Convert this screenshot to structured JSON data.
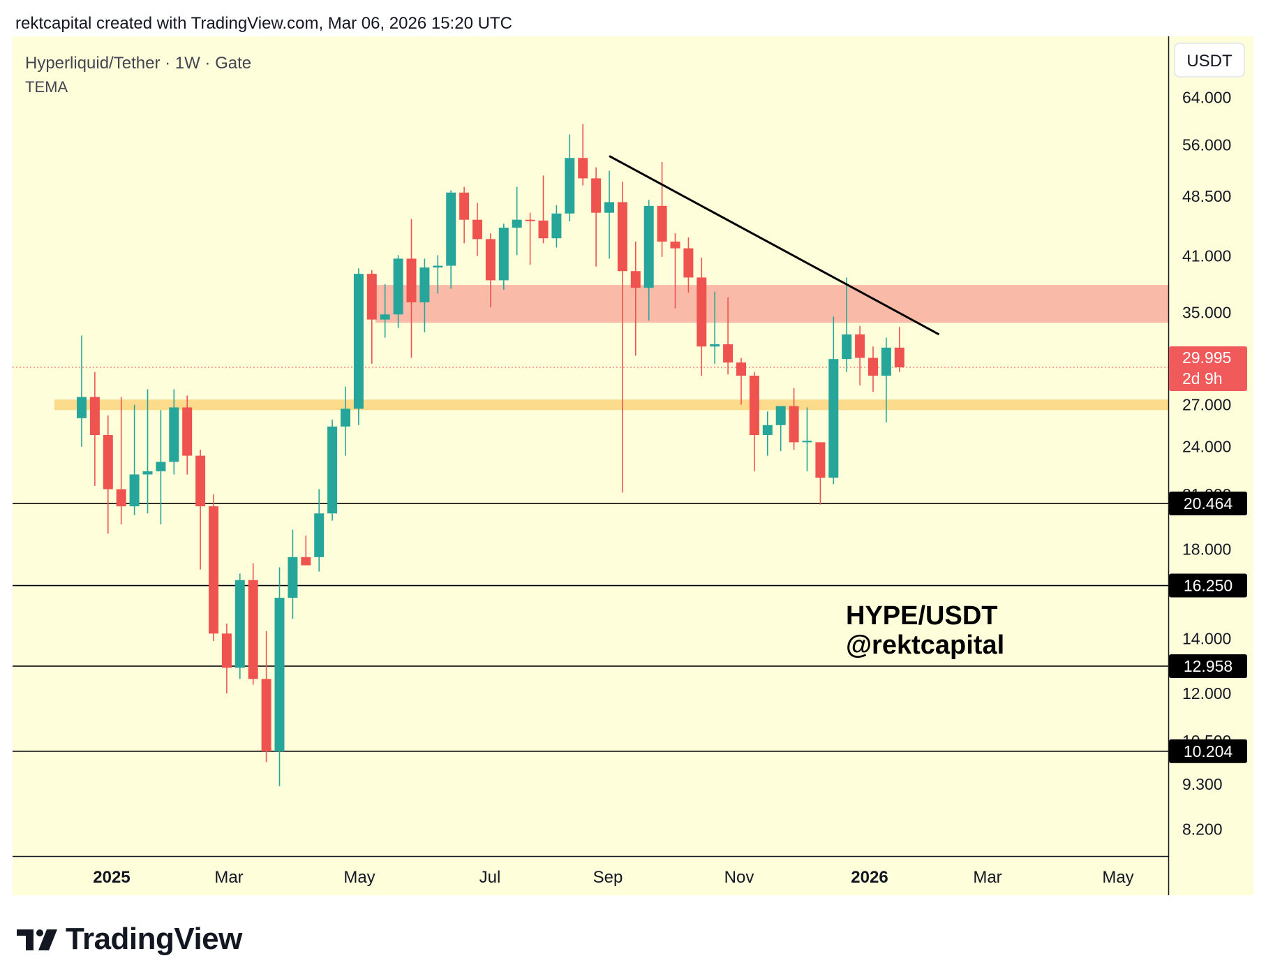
{
  "header": {
    "attribution": "rektcapital created with TradingView.com, Mar 06, 2026 15:20 UTC"
  },
  "symbol_title": "Hyperliquid/Tether · 1W · Gate",
  "indicator": "TEMA",
  "currency_button": "USDT",
  "annotation": {
    "line1": "HYPE/USDT",
    "line2": "@rektcapital"
  },
  "last_price": {
    "value": "29.995",
    "countdown": "2d 9h"
  },
  "brand": {
    "name": "TradingView"
  },
  "colors": {
    "background": "#fffedb",
    "up": "#26a69a",
    "down": "#ef5350",
    "resistance_zone": "#f9bba8",
    "support_band": "#fcdc8c",
    "level_line": "#000000",
    "trendline": "#000000",
    "price_label_bg": "#000000",
    "last_price_bg": "#f05a5a"
  },
  "chart_data": {
    "type": "candlestick",
    "title": "Hyperliquid/Tether · 1W · Gate",
    "y_scale": "log",
    "ylim": [
      7.6,
      76
    ],
    "x_tick_labels": [
      "2025",
      "Mar",
      "May",
      "Jul",
      "Sep",
      "Nov",
      "2026",
      "Mar",
      "May"
    ],
    "y_tick_labels": [
      "64.000",
      "56.000",
      "48.500",
      "41.000",
      "35.000",
      "31.000",
      "27.000",
      "24.000",
      "21.000",
      "18.000",
      "14.000",
      "12.000",
      "10.500",
      "9.300",
      "8.200"
    ],
    "y_ticks": [
      64,
      56,
      48.5,
      41,
      35,
      31,
      27,
      24,
      21,
      18,
      14,
      12,
      10.5,
      9.3,
      8.2
    ],
    "horizontal_levels": [
      {
        "value": 20.464,
        "label": "20.464"
      },
      {
        "value": 16.25,
        "label": "16.250"
      },
      {
        "value": 12.958,
        "label": "12.958"
      },
      {
        "value": 10.204,
        "label": "10.204"
      }
    ],
    "resistance_zone": {
      "low": 34.0,
      "high": 37.8
    },
    "support_band": {
      "low": 26.6,
      "high": 27.4
    },
    "trendline": [
      {
        "index": 40,
        "price": 54.3
      },
      {
        "index": 65,
        "price": 32.9
      }
    ],
    "last_price": 29.995,
    "candles": [
      {
        "date": "2024-12-16",
        "open": 26.0,
        "high": 32.8,
        "low": 24.0,
        "close": 27.6
      },
      {
        "date": "2024-12-23",
        "open": 27.6,
        "high": 29.6,
        "low": 21.5,
        "close": 24.8
      },
      {
        "date": "2024-12-30",
        "open": 24.8,
        "high": 26.2,
        "low": 18.8,
        "close": 21.3
      },
      {
        "date": "2025-01-06",
        "open": 21.3,
        "high": 27.6,
        "low": 19.3,
        "close": 20.3
      },
      {
        "date": "2025-01-13",
        "open": 20.3,
        "high": 27.0,
        "low": 19.8,
        "close": 22.2
      },
      {
        "date": "2025-01-20",
        "open": 22.2,
        "high": 28.2,
        "low": 19.9,
        "close": 22.4
      },
      {
        "date": "2025-01-27",
        "open": 22.4,
        "high": 26.6,
        "low": 19.3,
        "close": 23.0
      },
      {
        "date": "2025-02-03",
        "open": 23.0,
        "high": 28.2,
        "low": 22.2,
        "close": 26.8
      },
      {
        "date": "2025-02-10",
        "open": 26.8,
        "high": 27.7,
        "low": 22.2,
        "close": 23.4
      },
      {
        "date": "2025-02-17",
        "open": 23.4,
        "high": 23.8,
        "low": 17.0,
        "close": 20.3
      },
      {
        "date": "2025-02-24",
        "open": 20.3,
        "high": 21.0,
        "low": 13.9,
        "close": 14.2
      },
      {
        "date": "2025-03-03",
        "open": 14.2,
        "high": 14.6,
        "low": 12.0,
        "close": 12.9
      },
      {
        "date": "2025-03-10",
        "open": 12.9,
        "high": 16.8,
        "low": 12.5,
        "close": 16.5
      },
      {
        "date": "2025-03-17",
        "open": 16.5,
        "high": 17.3,
        "low": 12.3,
        "close": 12.5
      },
      {
        "date": "2025-03-24",
        "open": 12.5,
        "high": 14.3,
        "low": 9.9,
        "close": 10.2
      },
      {
        "date": "2025-03-31",
        "open": 10.2,
        "high": 17.1,
        "low": 9.25,
        "close": 15.7
      },
      {
        "date": "2025-04-07",
        "open": 15.7,
        "high": 19.0,
        "low": 14.8,
        "close": 17.6
      },
      {
        "date": "2025-04-14",
        "open": 17.6,
        "high": 18.7,
        "low": 17.2,
        "close": 17.2
      },
      {
        "date": "2025-04-21",
        "open": 17.6,
        "high": 21.3,
        "low": 16.9,
        "close": 19.9
      },
      {
        "date": "2025-04-28",
        "open": 19.9,
        "high": 25.9,
        "low": 19.5,
        "close": 25.4
      },
      {
        "date": "2025-05-05",
        "open": 25.4,
        "high": 28.4,
        "low": 23.4,
        "close": 26.7
      },
      {
        "date": "2025-05-12",
        "open": 26.7,
        "high": 39.6,
        "low": 25.5,
        "close": 39.0
      },
      {
        "date": "2025-05-19",
        "open": 39.0,
        "high": 39.4,
        "low": 30.3,
        "close": 34.3
      },
      {
        "date": "2025-05-26",
        "open": 34.3,
        "high": 37.9,
        "low": 32.6,
        "close": 34.8
      },
      {
        "date": "2025-06-02",
        "open": 34.8,
        "high": 41.1,
        "low": 33.5,
        "close": 40.7
      },
      {
        "date": "2025-06-09",
        "open": 40.7,
        "high": 45.5,
        "low": 30.8,
        "close": 36.0
      },
      {
        "date": "2025-06-16",
        "open": 36.0,
        "high": 40.7,
        "low": 33.1,
        "close": 39.7
      },
      {
        "date": "2025-06-23",
        "open": 39.7,
        "high": 41.1,
        "low": 36.9,
        "close": 39.9
      },
      {
        "date": "2025-06-30",
        "open": 39.9,
        "high": 49.3,
        "low": 37.4,
        "close": 49.0
      },
      {
        "date": "2025-07-07",
        "open": 49.0,
        "high": 49.8,
        "low": 42.5,
        "close": 45.4
      },
      {
        "date": "2025-07-14",
        "open": 45.4,
        "high": 47.6,
        "low": 41.0,
        "close": 43.0
      },
      {
        "date": "2025-07-21",
        "open": 43.0,
        "high": 43.7,
        "low": 35.5,
        "close": 38.3
      },
      {
        "date": "2025-07-28",
        "open": 38.3,
        "high": 44.9,
        "low": 37.3,
        "close": 44.4
      },
      {
        "date": "2025-08-04",
        "open": 44.4,
        "high": 49.8,
        "low": 41.1,
        "close": 45.4
      },
      {
        "date": "2025-08-11",
        "open": 45.4,
        "high": 46.3,
        "low": 40.0,
        "close": 45.3
      },
      {
        "date": "2025-08-18",
        "open": 45.3,
        "high": 51.4,
        "low": 42.5,
        "close": 43.1
      },
      {
        "date": "2025-08-25",
        "open": 43.1,
        "high": 47.3,
        "low": 42.0,
        "close": 46.2
      },
      {
        "date": "2025-09-01",
        "open": 46.2,
        "high": 57.7,
        "low": 45.2,
        "close": 54.0
      },
      {
        "date": "2025-09-08",
        "open": 54.0,
        "high": 59.4,
        "low": 50.0,
        "close": 51.0
      },
      {
        "date": "2025-09-15",
        "open": 51.0,
        "high": 52.6,
        "low": 39.8,
        "close": 46.3
      },
      {
        "date": "2025-09-22",
        "open": 46.3,
        "high": 52.1,
        "low": 40.7,
        "close": 47.7
      },
      {
        "date": "2025-09-29",
        "open": 47.7,
        "high": 50.5,
        "low": 21.1,
        "close": 39.3
      },
      {
        "date": "2025-10-06",
        "open": 39.3,
        "high": 42.7,
        "low": 31.0,
        "close": 37.5
      },
      {
        "date": "2025-10-13",
        "open": 37.5,
        "high": 48.0,
        "low": 34.2,
        "close": 47.2
      },
      {
        "date": "2025-10-20",
        "open": 47.2,
        "high": 53.4,
        "low": 40.9,
        "close": 42.7
      },
      {
        "date": "2025-10-27",
        "open": 42.7,
        "high": 43.7,
        "low": 35.4,
        "close": 41.9
      },
      {
        "date": "2025-11-03",
        "open": 41.9,
        "high": 43.2,
        "low": 37.0,
        "close": 38.6
      },
      {
        "date": "2025-11-10",
        "open": 38.6,
        "high": 40.8,
        "low": 29.3,
        "close": 31.8
      },
      {
        "date": "2025-11-17",
        "open": 31.8,
        "high": 37.1,
        "low": 30.3,
        "close": 32.0
      },
      {
        "date": "2025-11-24",
        "open": 32.0,
        "high": 36.5,
        "low": 29.4,
        "close": 30.4
      },
      {
        "date": "2025-12-01",
        "open": 30.4,
        "high": 30.8,
        "low": 27.0,
        "close": 29.3
      },
      {
        "date": "2025-12-08",
        "open": 29.3,
        "high": 29.6,
        "low": 22.4,
        "close": 24.8
      },
      {
        "date": "2025-12-15",
        "open": 24.8,
        "high": 26.5,
        "low": 23.4,
        "close": 25.5
      },
      {
        "date": "2025-12-22",
        "open": 25.5,
        "high": 26.8,
        "low": 23.7,
        "close": 26.9
      },
      {
        "date": "2025-12-29",
        "open": 26.9,
        "high": 28.3,
        "low": 23.8,
        "close": 24.3
      },
      {
        "date": "2026-01-05",
        "open": 24.3,
        "high": 26.8,
        "low": 22.4,
        "close": 24.4
      },
      {
        "date": "2026-01-12",
        "open": 24.3,
        "high": 24.3,
        "low": 20.4,
        "close": 22.0
      },
      {
        "date": "2026-01-19",
        "open": 22.0,
        "high": 34.6,
        "low": 21.6,
        "close": 30.7
      },
      {
        "date": "2026-01-26",
        "open": 30.7,
        "high": 38.6,
        "low": 29.6,
        "close": 32.9
      },
      {
        "date": "2026-02-02",
        "open": 32.9,
        "high": 33.7,
        "low": 28.5,
        "close": 30.8
      },
      {
        "date": "2026-02-09",
        "open": 30.8,
        "high": 31.8,
        "low": 28.0,
        "close": 29.3
      },
      {
        "date": "2026-02-16",
        "open": 29.3,
        "high": 32.6,
        "low": 25.7,
        "close": 31.7
      },
      {
        "date": "2026-02-23",
        "open": 31.7,
        "high": 33.6,
        "low": 29.6,
        "close": 29.995
      }
    ]
  }
}
